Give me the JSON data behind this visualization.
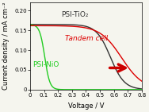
{
  "title": "",
  "xlabel": "Voltage / V",
  "ylabel": "Current density / mA cm⁻²",
  "xlim": [
    0,
    0.8
  ],
  "ylim": [
    0,
    0.22
  ],
  "yticks": [
    0,
    0.05,
    0.1,
    0.15,
    0.2
  ],
  "xticks": [
    0,
    0.1,
    0.2,
    0.3,
    0.4,
    0.5,
    0.6,
    0.7,
    0.8
  ],
  "psi_tio2_color": "#333333",
  "psi_nio_color": "#22cc22",
  "tandem_color": "#dd0000",
  "arrow_color": "#cc0000",
  "label_tio2": "PSI-TiO₂",
  "label_nio": "PSI-NiO",
  "label_tandem": "Tandem cell",
  "bg_color": "#f5f5ee",
  "fontsize_label": 6.0,
  "fontsize_tick": 5.0,
  "fontsize_annot": 6.5
}
